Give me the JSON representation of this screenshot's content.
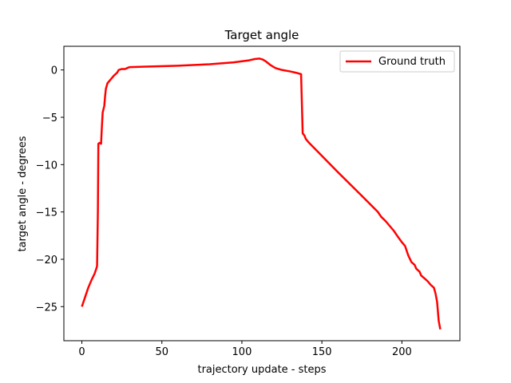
{
  "chart_data": {
    "type": "line",
    "title": "Target angle",
    "xlabel": "trajectory update - steps",
    "ylabel": "target angle - degrees",
    "xlim": [
      -11.25,
      236.25
    ],
    "ylim": [
      -28.6,
      2.5
    ],
    "xticks": [
      0,
      50,
      100,
      150,
      200
    ],
    "yticks": [
      0,
      -5,
      -10,
      -15,
      -20,
      -25
    ],
    "grid": false,
    "legend_position": "upper right",
    "series": [
      {
        "name": "Ground truth",
        "color": "#ff0000",
        "points": [
          [
            0,
            -25.0
          ],
          [
            2,
            -24.0
          ],
          [
            4,
            -23.0
          ],
          [
            6,
            -22.2
          ],
          [
            8,
            -21.5
          ],
          [
            9,
            -21.0
          ],
          [
            9.5,
            -20.7
          ],
          [
            10,
            -15.0
          ],
          [
            10.3,
            -7.8
          ],
          [
            11,
            -7.7
          ],
          [
            12,
            -7.8
          ],
          [
            12.5,
            -6.0
          ],
          [
            13,
            -4.5
          ],
          [
            14,
            -3.8
          ],
          [
            14.5,
            -2.8
          ],
          [
            15,
            -2.0
          ],
          [
            16,
            -1.4
          ],
          [
            18,
            -1.0
          ],
          [
            20,
            -0.6
          ],
          [
            22,
            -0.3
          ],
          [
            23,
            0.0
          ],
          [
            25,
            0.1
          ],
          [
            27,
            0.1
          ],
          [
            29,
            0.25
          ],
          [
            30,
            0.3
          ],
          [
            40,
            0.35
          ],
          [
            60,
            0.45
          ],
          [
            80,
            0.6
          ],
          [
            95,
            0.8
          ],
          [
            104,
            1.0
          ],
          [
            108,
            1.15
          ],
          [
            111,
            1.2
          ],
          [
            113,
            1.1
          ],
          [
            115,
            0.9
          ],
          [
            118,
            0.5
          ],
          [
            121,
            0.2
          ],
          [
            125,
            0.0
          ],
          [
            130,
            -0.15
          ],
          [
            134,
            -0.3
          ],
          [
            137,
            -0.45
          ],
          [
            138,
            -6.7
          ],
          [
            139,
            -6.9
          ],
          [
            140,
            -7.3
          ],
          [
            142,
            -7.7
          ],
          [
            160,
            -10.8
          ],
          [
            175,
            -13.3
          ],
          [
            185,
            -15.0
          ],
          [
            187,
            -15.5
          ],
          [
            190,
            -16.0
          ],
          [
            195,
            -17.0
          ],
          [
            197,
            -17.5
          ],
          [
            200,
            -18.2
          ],
          [
            202,
            -18.6
          ],
          [
            204,
            -19.6
          ],
          [
            206,
            -20.3
          ],
          [
            208,
            -20.6
          ],
          [
            209,
            -21.0
          ],
          [
            211,
            -21.3
          ],
          [
            212,
            -21.7
          ],
          [
            214,
            -22.0
          ],
          [
            216,
            -22.3
          ],
          [
            218,
            -22.7
          ],
          [
            220,
            -23.0
          ],
          [
            221,
            -23.6
          ],
          [
            222,
            -24.5
          ],
          [
            223,
            -26.5
          ],
          [
            224,
            -27.4
          ]
        ]
      }
    ]
  }
}
